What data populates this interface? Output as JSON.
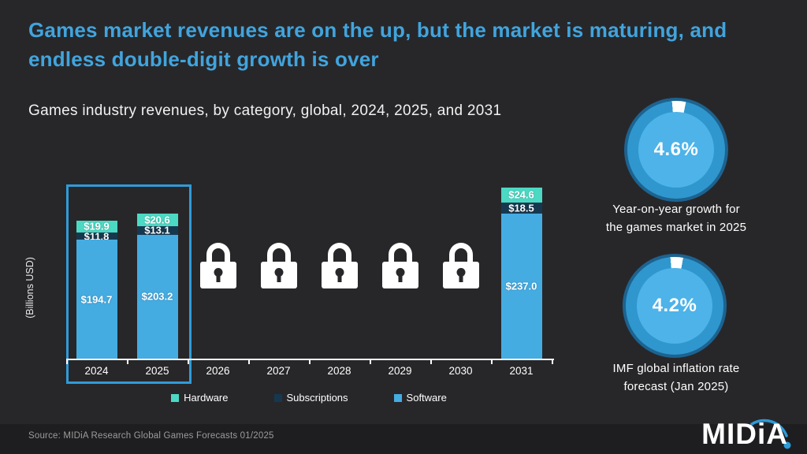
{
  "title": "Games market revenues are on the up, but the market is maturing, and endless double-digit growth is over",
  "subtitle": "Games industry revenues, by category, global, 2024, 2025, and 2031",
  "source": "Source: MIDiA Research Global Games Forecasts 01/2025",
  "brand": {
    "logo_text": "MIDiA"
  },
  "colors": {
    "background": "#27272a",
    "title_blue": "#41a4dd",
    "hardware": "#4cd9c4",
    "subscriptions": "#16384f",
    "software": "#45ace2",
    "highlight_border": "#2f9bd8",
    "gauge_outer": "#1d6390",
    "gauge_band": "#2f97cd",
    "gauge_inner": "#4db3e9",
    "accent_blue": "#2e9ad6"
  },
  "chart_data": {
    "type": "bar",
    "stacked": true,
    "title": "Games industry revenues, by category, global, 2024, 2025, and 2031",
    "ylabel": "(Billions USD)",
    "unit": "billions USD",
    "value_prefix": "$",
    "categories": [
      "2024",
      "2025",
      "2026",
      "2027",
      "2028",
      "2029",
      "2030",
      "2031"
    ],
    "series": [
      {
        "name": "Hardware",
        "color": "#4cd9c4",
        "values": [
          19.9,
          20.6,
          null,
          null,
          null,
          null,
          null,
          24.6
        ]
      },
      {
        "name": "Subscriptions",
        "color": "#16384f",
        "values": [
          11.8,
          13.1,
          null,
          null,
          null,
          null,
          null,
          18.5
        ]
      },
      {
        "name": "Software",
        "color": "#45ace2",
        "values": [
          194.7,
          203.2,
          null,
          null,
          null,
          null,
          null,
          237.0
        ]
      }
    ],
    "locked_categories": [
      "2026",
      "2027",
      "2028",
      "2029",
      "2030"
    ],
    "highlighted_categories": [
      "2024",
      "2025"
    ],
    "legend_position": "bottom",
    "legend": [
      "Hardware",
      "Subscriptions",
      "Software"
    ]
  },
  "gauges": [
    {
      "value": 4.6,
      "label": "4.6%",
      "caption": [
        "Year-on-year growth for",
        "the games market in 2025"
      ]
    },
    {
      "value": 4.2,
      "label": "4.2%",
      "caption": [
        "IMF global inflation rate",
        "forecast (Jan 2025)"
      ]
    }
  ]
}
